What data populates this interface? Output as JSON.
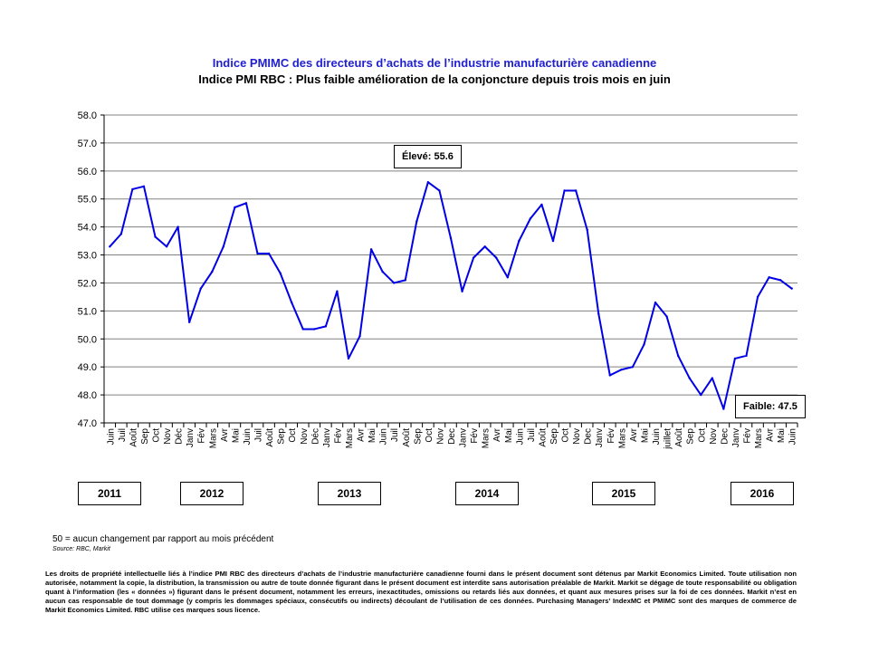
{
  "chart_data": {
    "type": "line",
    "title": "Indice PMIMC des directeurs d’achats de l’industrie manufacturière canadienne",
    "subtitle": "Indice PMI RBC : Plus faible amélioration de la conjoncture depuis trois mois en juin",
    "ylim": [
      47.0,
      58.0
    ],
    "yticks": [
      "58.0",
      "57.0",
      "56.0",
      "55.0",
      "54.0",
      "53.0",
      "52.0",
      "51.0",
      "50.0",
      "49.0",
      "48.0",
      "47.0"
    ],
    "grid": true,
    "categories": [
      "Juin",
      "Juil",
      "Août",
      "Sep",
      "Oct",
      "Nov",
      "Déc",
      "Janv",
      "Fév",
      "Mars",
      "Avr",
      "Mai",
      "Juin",
      "Juil",
      "Août",
      "Sep",
      "Oct",
      "Nov",
      "Déc",
      "Janv",
      "Fév",
      "Mars",
      "Avr",
      "Mai",
      "Juin",
      "Juil",
      "Août",
      "Sep",
      "Oct",
      "Nov",
      "Dec",
      "Janv",
      "Fév",
      "Mars",
      "Avr",
      "Mai",
      "Juin",
      "Juil",
      "Août",
      "Sep",
      "Oct",
      "Nov",
      "Dec",
      "Janv",
      "Fév",
      "Mars",
      "Avr",
      "Mai",
      "Juin",
      "juillet",
      "Août",
      "Sep",
      "Oct",
      "Nov",
      "Dec",
      "Janv",
      "Fév",
      "Mars",
      "Avr",
      "Mai",
      "Juin"
    ],
    "series": [
      {
        "color": "#0000e6",
        "values": [
          53.3,
          53.75,
          55.35,
          55.45,
          53.65,
          53.3,
          54.0,
          50.6,
          51.8,
          52.4,
          53.3,
          54.7,
          54.85,
          53.05,
          53.05,
          52.35,
          51.3,
          50.35,
          50.35,
          50.45,
          51.7,
          49.3,
          50.1,
          53.2,
          52.4,
          52.0,
          52.1,
          54.2,
          55.6,
          55.3,
          53.6,
          51.7,
          52.9,
          53.3,
          52.9,
          52.2,
          53.5,
          54.3,
          54.8,
          53.5,
          55.3,
          55.3,
          53.9,
          50.9,
          48.7,
          48.9,
          49.0,
          49.8,
          51.3,
          50.8,
          49.4,
          48.6,
          48.0,
          48.6,
          47.5,
          49.3,
          49.4,
          51.5,
          52.2,
          52.1,
          51.8
        ]
      }
    ],
    "years": [
      "2011",
      "2012",
      "2013",
      "2014",
      "2015",
      "2016"
    ],
    "annotations": {
      "high": "Élevé: 55.6",
      "low": "Faible: 47.5"
    }
  },
  "note": "50 = aucun changement par rapport au mois précédent",
  "source": "Source: RBC, Markit",
  "disclaimer": "Les droits de propriété intellectuelle liés à l’indice PMI RBC des directeurs d’achats de l’industrie manufacturière canadienne fourni dans le présent document sont détenus par Markit Economics Limited. Toute utilisation non autorisée, notamment la copie, la distribution, la transmission ou autre de toute donnée figurant dans le présent document est interdite sans autorisation préalable de Markit. Markit se dégage de toute responsabilité ou obligation quant à l’information (les « données ») figurant dans le présent document, notamment les erreurs, inexactitudes, omissions ou retards liés aux données, et quant aux mesures prises sur la foi de ces données. Markit n’est en aucun cas responsable de tout dommage (y compris les dommages spéciaux, consécutifs ou indirects) découlant de l’utilisation de ces données. Purchasing Managers’ IndexMC et PMIMC sont des marques de commerce de Markit Economics Limited. RBC utilise ces marques sous licence."
}
